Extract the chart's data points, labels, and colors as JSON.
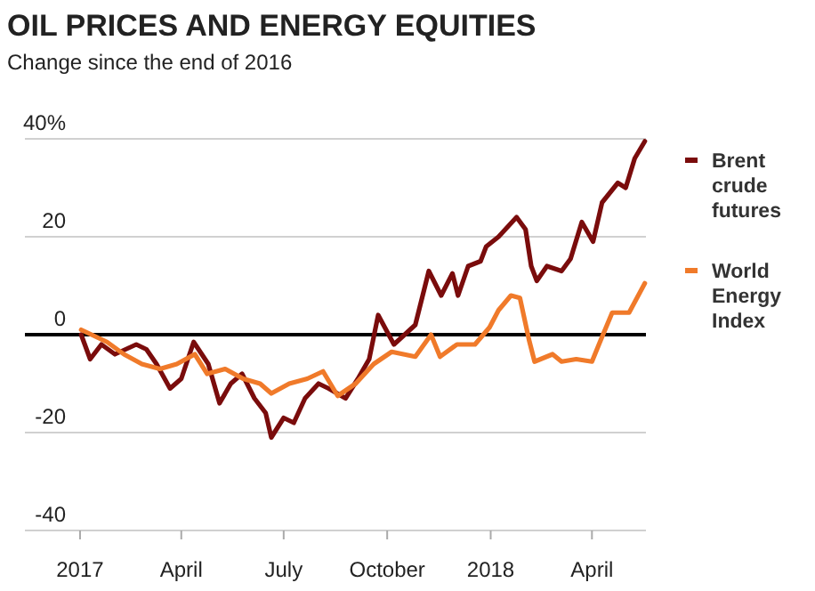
{
  "chart_data": {
    "type": "line",
    "title": "OIL PRICES AND ENERGY EQUITIES",
    "subtitle": "Change since the end of 2016",
    "xlim": [
      "2016-11-13",
      "2018-05-19"
    ],
    "xticks": [
      {
        "value": "2017-01-01",
        "label": "2017"
      },
      {
        "value": "2017-04-01",
        "label": "April"
      },
      {
        "value": "2017-07-01",
        "label": "July"
      },
      {
        "value": "2017-10-01",
        "label": "October"
      },
      {
        "value": "2018-01-01",
        "label": "2018"
      },
      {
        "value": "2018-04-01",
        "label": "April"
      }
    ],
    "ylim": [
      -40,
      40
    ],
    "yticks": [
      -40,
      -20,
      0,
      20,
      {
        "value": 40,
        "label": "40%"
      }
    ],
    "grid": "y",
    "legend": "right",
    "line_style": "solid",
    "ref_lines": [
      {
        "axis": "y",
        "value": 0,
        "color": "#000000"
      }
    ],
    "series": [
      {
        "name": "Brent crude futures",
        "color": "#7a0c0c",
        "x": [
          "2017-01-02",
          "2017-01-10",
          "2017-01-20",
          "2017-02-01",
          "2017-02-20",
          "2017-03-01",
          "2017-03-10",
          "2017-03-22",
          "2017-04-01",
          "2017-04-12",
          "2017-04-25",
          "2017-05-05",
          "2017-05-15",
          "2017-05-25",
          "2017-06-05",
          "2017-06-15",
          "2017-06-20",
          "2017-07-01",
          "2017-07-10",
          "2017-07-20",
          "2017-08-01",
          "2017-08-10",
          "2017-08-25",
          "2017-09-05",
          "2017-09-15",
          "2017-09-23",
          "2017-10-07",
          "2017-10-26",
          "2017-11-07",
          "2017-11-18",
          "2017-11-28",
          "2017-12-03",
          "2017-12-12",
          "2017-12-23",
          "2017-12-28",
          "2018-01-08",
          "2018-01-24",
          "2018-02-01",
          "2018-02-06",
          "2018-02-11",
          "2018-02-20",
          "2018-03-05",
          "2018-03-13",
          "2018-03-23",
          "2018-04-02",
          "2018-04-10",
          "2018-04-24",
          "2018-05-01",
          "2018-05-09",
          "2018-05-18"
        ],
        "values": [
          0,
          -5,
          -2,
          -4,
          -2,
          -3,
          -6,
          -11,
          -9,
          -1.5,
          -6,
          -14,
          -10,
          -8,
          -13,
          -16,
          -21,
          -17,
          -18,
          -13,
          -10,
          -11,
          -13,
          -9,
          -5,
          4,
          -2,
          2,
          13,
          8,
          12.5,
          8,
          14,
          15,
          18,
          20,
          24,
          21.5,
          14,
          11,
          14,
          13,
          15.5,
          23,
          19,
          27,
          31,
          30,
          36,
          39.5
        ]
      },
      {
        "name": "World Energy Index",
        "color": "#f07a2a",
        "x": [
          "2017-01-02",
          "2017-01-25",
          "2017-02-09",
          "2017-02-25",
          "2017-03-13",
          "2017-03-28",
          "2017-04-13",
          "2017-04-24",
          "2017-05-10",
          "2017-05-26",
          "2017-06-10",
          "2017-06-20",
          "2017-07-06",
          "2017-07-22",
          "2017-08-05",
          "2017-08-18",
          "2017-09-03",
          "2017-09-19",
          "2017-10-05",
          "2017-10-26",
          "2017-11-09",
          "2017-11-17",
          "2017-12-02",
          "2017-12-18",
          "2017-12-31",
          "2018-01-08",
          "2018-01-19",
          "2018-01-27",
          "2018-02-04",
          "2018-02-09",
          "2018-02-25",
          "2018-03-05",
          "2018-03-18",
          "2018-04-01",
          "2018-04-09",
          "2018-04-19",
          "2018-05-04",
          "2018-05-18"
        ],
        "values": [
          1,
          -1.5,
          -4,
          -6,
          -7,
          -6,
          -4,
          -8,
          -7,
          -9,
          -10,
          -12,
          -10,
          -9,
          -7.5,
          -12.5,
          -10,
          -6,
          -3.5,
          -4.5,
          0,
          -4.5,
          -2,
          -2,
          1.5,
          5,
          8,
          7.5,
          -1,
          -5.5,
          -4,
          -5.5,
          -5,
          -5.5,
          -1,
          4.5,
          4.5,
          10.5
        ]
      }
    ]
  }
}
